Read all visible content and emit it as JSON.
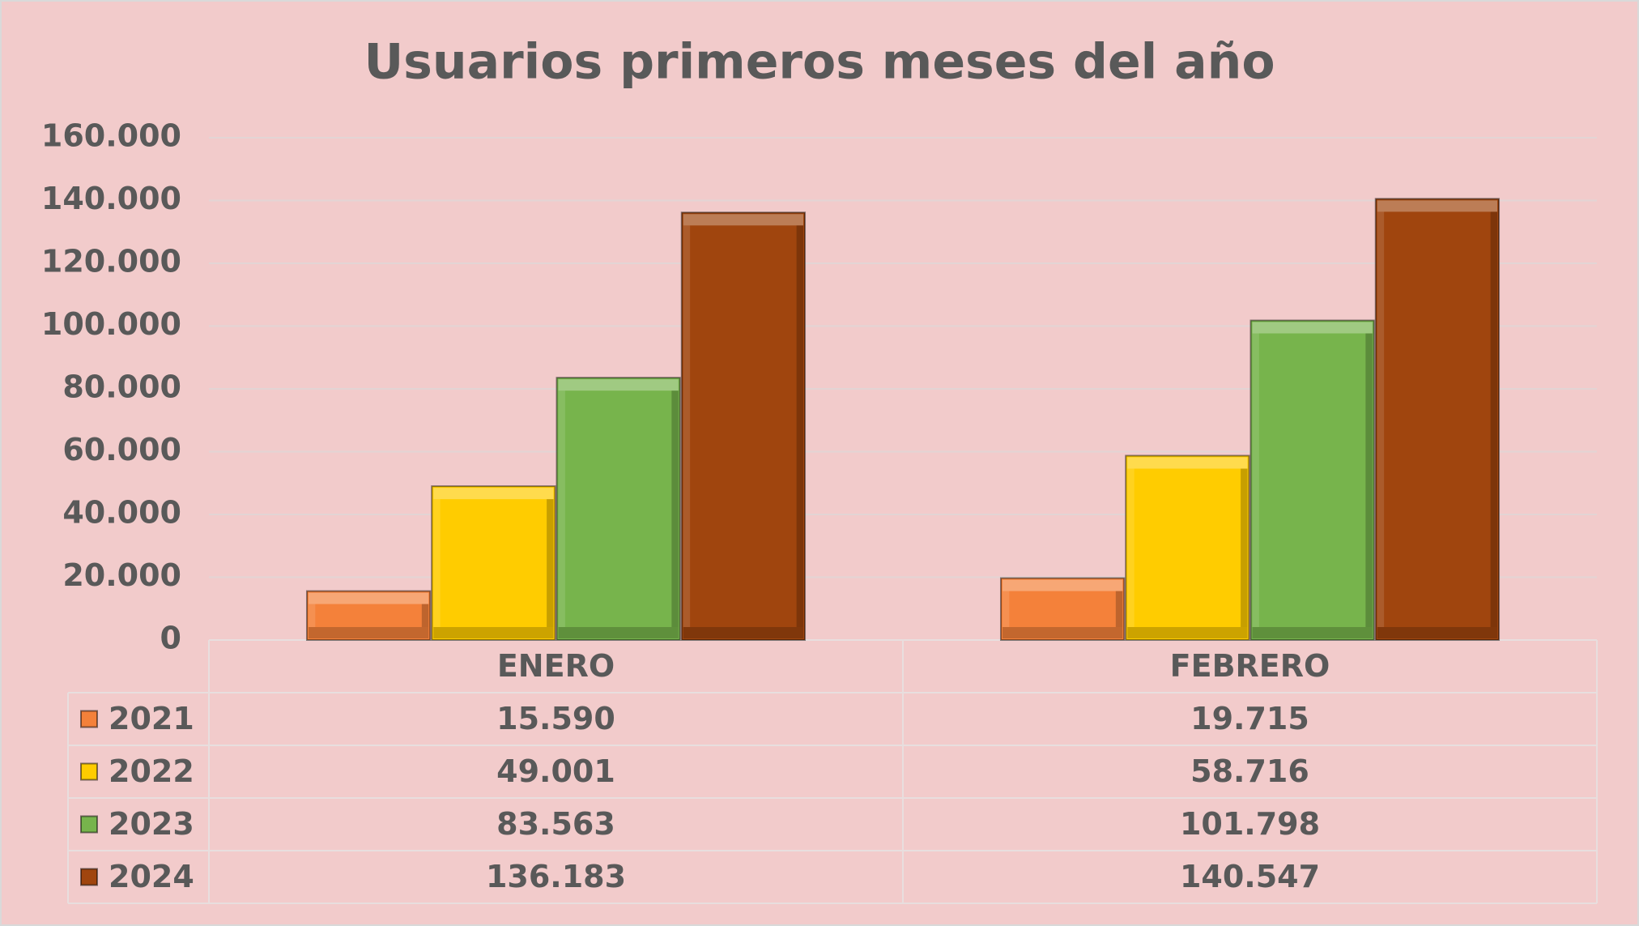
{
  "chart_data": {
    "type": "bar",
    "title": "Usuarios primeros meses del año",
    "categories": [
      "ENERO",
      "FEBRERO"
    ],
    "series": [
      {
        "name": "2021",
        "color": "#f4813a",
        "values": [
          15590,
          19715
        ],
        "value_labels": [
          "15.590",
          "19.715"
        ]
      },
      {
        "name": "2022",
        "color": "#ffcc00",
        "values": [
          49001,
          58716
        ],
        "value_labels": [
          "49.001",
          "58.716"
        ]
      },
      {
        "name": "2023",
        "color": "#77b44c",
        "values": [
          83563,
          101798
        ],
        "value_labels": [
          "83.563",
          "101.798"
        ]
      },
      {
        "name": "2024",
        "color": "#a0450e",
        "values": [
          136183,
          140547
        ],
        "value_labels": [
          "136.183",
          "140.547"
        ]
      }
    ],
    "ylim": [
      0,
      160000
    ],
    "yticks": [
      0,
      {
        "value": 20000,
        "label": "20.000"
      },
      {
        "value": 40000,
        "label": "40.000"
      },
      {
        "value": 60000,
        "label": "60.000"
      },
      {
        "value": 80000,
        "label": "80.000"
      },
      {
        "value": 100000,
        "label": "100.000"
      },
      {
        "value": 120000,
        "label": "120.000"
      },
      {
        "value": 140000,
        "label": "140.000"
      },
      {
        "value": 160000,
        "label": "160.000"
      }
    ],
    "grid": true,
    "legend": "table"
  }
}
